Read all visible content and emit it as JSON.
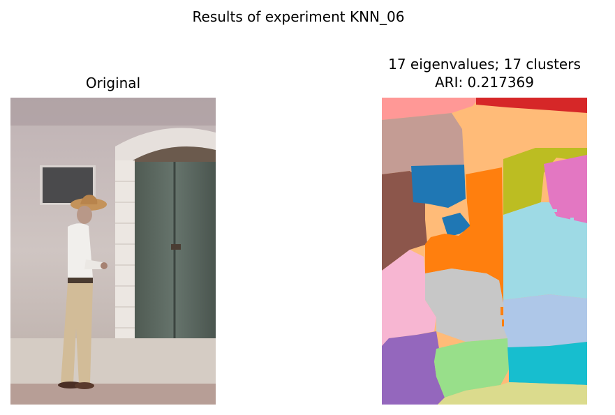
{
  "figure": {
    "suptitle": "Results of experiment KNN_06"
  },
  "left_panel": {
    "title": "Original"
  },
  "right_panel": {
    "title_line1": "17 eigenvalues; 17 clusters",
    "title_line2": "ARI: 0.217369"
  },
  "chart_data": {
    "type": "heatmap",
    "title": "17 eigenvalues; 17 clusters",
    "eigenvalues": 17,
    "clusters": 17,
    "ari": 0.217369,
    "palette": [
      "#1f77b4",
      "#ff7f0e",
      "#8c564b",
      "#e377c2",
      "#c7c7c7",
      "#bcbd22",
      "#17becf",
      "#ff9896",
      "#c49c94",
      "#ffbb78",
      "#98df8a",
      "#dbdb8d",
      "#9edae5",
      "#aec7e8",
      "#f7b6d2",
      "#9467bd",
      "#d62728"
    ]
  }
}
